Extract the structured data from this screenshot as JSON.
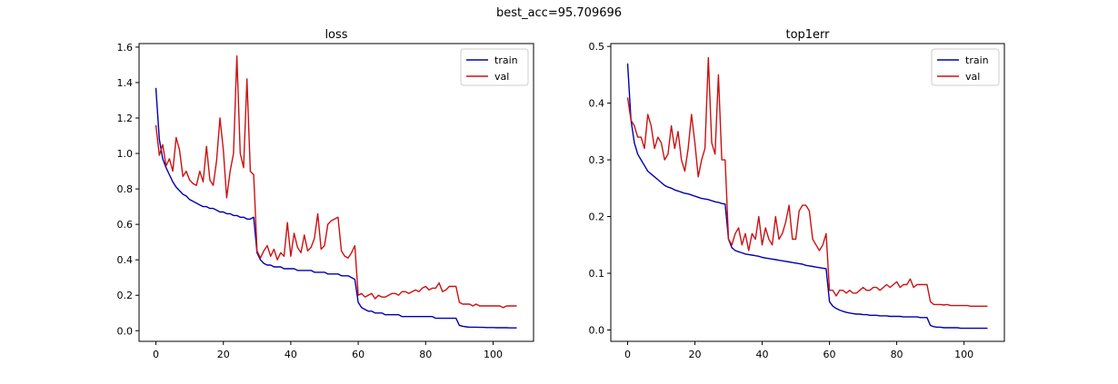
{
  "suptitle": "best_acc=95.709696",
  "colors": {
    "train": "#0000b0",
    "val": "#cc1111",
    "axis": "#000000"
  },
  "chart_data": [
    {
      "type": "line",
      "title": "loss",
      "xlabel": "",
      "ylabel": "",
      "xlim": [
        -5,
        112
      ],
      "ylim": [
        -0.06,
        1.62
      ],
      "xticks": [
        0,
        20,
        40,
        60,
        80,
        100
      ],
      "yticks": [
        0.0,
        0.2,
        0.4,
        0.6,
        0.8,
        1.0,
        1.2,
        1.4,
        1.6
      ],
      "ytick_labels": [
        "0.0",
        "0.2",
        "0.4",
        "0.6",
        "0.8",
        "1.0",
        "1.2",
        "1.4",
        "1.6"
      ],
      "xtick_labels": [
        "0",
        "20",
        "40",
        "60",
        "80",
        "100"
      ],
      "legend": "top-right",
      "series": [
        {
          "name": "train",
          "x": [
            0,
            1,
            2,
            3,
            4,
            5,
            6,
            7,
            8,
            9,
            10,
            11,
            12,
            13,
            14,
            15,
            16,
            17,
            18,
            19,
            20,
            21,
            22,
            23,
            24,
            25,
            26,
            27,
            28,
            29,
            30,
            31,
            32,
            33,
            34,
            35,
            36,
            37,
            38,
            39,
            40,
            41,
            42,
            43,
            44,
            45,
            46,
            47,
            48,
            49,
            50,
            51,
            52,
            53,
            54,
            55,
            56,
            57,
            58,
            59,
            60,
            61,
            62,
            63,
            64,
            65,
            66,
            67,
            68,
            69,
            70,
            71,
            72,
            73,
            74,
            75,
            76,
            77,
            78,
            79,
            80,
            81,
            82,
            83,
            84,
            85,
            86,
            87,
            88,
            89,
            90,
            91,
            92,
            93,
            94,
            95,
            96,
            97,
            98,
            99,
            100,
            101,
            102,
            103,
            104,
            105,
            106,
            107
          ],
          "y": [
            1.37,
            1.08,
            0.97,
            0.92,
            0.88,
            0.84,
            0.81,
            0.79,
            0.77,
            0.76,
            0.74,
            0.73,
            0.72,
            0.71,
            0.7,
            0.7,
            0.69,
            0.69,
            0.68,
            0.67,
            0.67,
            0.66,
            0.66,
            0.65,
            0.65,
            0.64,
            0.64,
            0.63,
            0.63,
            0.64,
            0.44,
            0.4,
            0.38,
            0.37,
            0.37,
            0.36,
            0.36,
            0.36,
            0.35,
            0.35,
            0.35,
            0.35,
            0.34,
            0.34,
            0.34,
            0.34,
            0.34,
            0.33,
            0.33,
            0.33,
            0.33,
            0.32,
            0.32,
            0.32,
            0.32,
            0.31,
            0.31,
            0.31,
            0.3,
            0.29,
            0.16,
            0.13,
            0.12,
            0.11,
            0.11,
            0.1,
            0.1,
            0.1,
            0.09,
            0.09,
            0.09,
            0.09,
            0.09,
            0.08,
            0.08,
            0.08,
            0.08,
            0.08,
            0.08,
            0.08,
            0.08,
            0.08,
            0.08,
            0.07,
            0.07,
            0.07,
            0.07,
            0.07,
            0.07,
            0.07,
            0.03,
            0.025,
            0.022,
            0.02,
            0.02,
            0.02,
            0.019,
            0.019,
            0.018,
            0.018,
            0.018,
            0.017,
            0.017,
            0.017,
            0.017,
            0.016,
            0.016,
            0.016
          ]
        },
        {
          "name": "val",
          "x": [
            0,
            1,
            2,
            3,
            4,
            5,
            6,
            7,
            8,
            9,
            10,
            11,
            12,
            13,
            14,
            15,
            16,
            17,
            18,
            19,
            20,
            21,
            22,
            23,
            24,
            25,
            26,
            27,
            28,
            29,
            30,
            31,
            32,
            33,
            34,
            35,
            36,
            37,
            38,
            39,
            40,
            41,
            42,
            43,
            44,
            45,
            46,
            47,
            48,
            49,
            50,
            51,
            52,
            53,
            54,
            55,
            56,
            57,
            58,
            59,
            60,
            61,
            62,
            63,
            64,
            65,
            66,
            67,
            68,
            69,
            70,
            71,
            72,
            73,
            74,
            75,
            76,
            77,
            78,
            79,
            80,
            81,
            82,
            83,
            84,
            85,
            86,
            87,
            88,
            89,
            90,
            91,
            92,
            93,
            94,
            95,
            96,
            97,
            98,
            99,
            100,
            101,
            102,
            103,
            104,
            105,
            106,
            107
          ],
          "y": [
            1.16,
            0.99,
            1.05,
            0.93,
            0.97,
            0.9,
            1.09,
            1.02,
            0.87,
            0.9,
            0.85,
            0.83,
            0.82,
            0.9,
            0.84,
            1.04,
            0.85,
            0.82,
            0.96,
            1.2,
            1.02,
            0.75,
            0.9,
            1.0,
            1.55,
            1.0,
            0.92,
            1.42,
            0.9,
            0.88,
            0.45,
            0.41,
            0.45,
            0.48,
            0.42,
            0.46,
            0.4,
            0.44,
            0.42,
            0.61,
            0.42,
            0.55,
            0.47,
            0.44,
            0.54,
            0.45,
            0.47,
            0.52,
            0.66,
            0.46,
            0.48,
            0.6,
            0.62,
            0.63,
            0.64,
            0.45,
            0.42,
            0.41,
            0.44,
            0.48,
            0.2,
            0.21,
            0.19,
            0.2,
            0.21,
            0.18,
            0.2,
            0.19,
            0.19,
            0.2,
            0.21,
            0.21,
            0.2,
            0.22,
            0.22,
            0.21,
            0.22,
            0.23,
            0.22,
            0.24,
            0.25,
            0.23,
            0.24,
            0.24,
            0.27,
            0.22,
            0.23,
            0.25,
            0.25,
            0.25,
            0.16,
            0.15,
            0.15,
            0.15,
            0.14,
            0.15,
            0.14,
            0.14,
            0.14,
            0.14,
            0.14,
            0.14,
            0.14,
            0.13,
            0.14,
            0.14,
            0.14,
            0.14
          ]
        }
      ]
    },
    {
      "type": "line",
      "title": "top1err",
      "xlabel": "",
      "ylabel": "",
      "xlim": [
        -5,
        112
      ],
      "ylim": [
        -0.02,
        0.505
      ],
      "xticks": [
        0,
        20,
        40,
        60,
        80,
        100
      ],
      "yticks": [
        0.0,
        0.1,
        0.2,
        0.3,
        0.4,
        0.5
      ],
      "ytick_labels": [
        "0.0",
        "0.1",
        "0.2",
        "0.3",
        "0.4",
        "0.5"
      ],
      "xtick_labels": [
        "0",
        "20",
        "40",
        "60",
        "80",
        "100"
      ],
      "legend": "top-right",
      "series": [
        {
          "name": "train",
          "x": [
            0,
            1,
            2,
            3,
            4,
            5,
            6,
            7,
            8,
            9,
            10,
            11,
            12,
            13,
            14,
            15,
            16,
            17,
            18,
            19,
            20,
            21,
            22,
            23,
            24,
            25,
            26,
            27,
            28,
            29,
            30,
            31,
            32,
            33,
            34,
            35,
            36,
            37,
            38,
            39,
            40,
            41,
            42,
            43,
            44,
            45,
            46,
            47,
            48,
            49,
            50,
            51,
            52,
            53,
            54,
            55,
            56,
            57,
            58,
            59,
            60,
            61,
            62,
            63,
            64,
            65,
            66,
            67,
            68,
            69,
            70,
            71,
            72,
            73,
            74,
            75,
            76,
            77,
            78,
            79,
            80,
            81,
            82,
            83,
            84,
            85,
            86,
            87,
            88,
            89,
            90,
            91,
            92,
            93,
            94,
            95,
            96,
            97,
            98,
            99,
            100,
            101,
            102,
            103,
            104,
            105,
            106,
            107
          ],
          "y": [
            0.47,
            0.37,
            0.33,
            0.31,
            0.3,
            0.29,
            0.28,
            0.275,
            0.27,
            0.265,
            0.26,
            0.255,
            0.252,
            0.25,
            0.247,
            0.245,
            0.243,
            0.241,
            0.24,
            0.238,
            0.236,
            0.234,
            0.232,
            0.231,
            0.23,
            0.228,
            0.226,
            0.225,
            0.223,
            0.222,
            0.16,
            0.145,
            0.14,
            0.138,
            0.136,
            0.134,
            0.133,
            0.132,
            0.131,
            0.13,
            0.128,
            0.127,
            0.126,
            0.125,
            0.124,
            0.123,
            0.122,
            0.121,
            0.12,
            0.119,
            0.118,
            0.117,
            0.116,
            0.114,
            0.113,
            0.112,
            0.111,
            0.11,
            0.109,
            0.108,
            0.05,
            0.042,
            0.038,
            0.035,
            0.033,
            0.031,
            0.03,
            0.029,
            0.028,
            0.028,
            0.027,
            0.027,
            0.026,
            0.026,
            0.026,
            0.025,
            0.025,
            0.025,
            0.024,
            0.024,
            0.024,
            0.024,
            0.023,
            0.023,
            0.023,
            0.023,
            0.023,
            0.022,
            0.022,
            0.022,
            0.008,
            0.006,
            0.005,
            0.005,
            0.004,
            0.004,
            0.004,
            0.004,
            0.004,
            0.003,
            0.003,
            0.003,
            0.003,
            0.003,
            0.003,
            0.003,
            0.003,
            0.003
          ]
        },
        {
          "name": "val",
          "x": [
            0,
            1,
            2,
            3,
            4,
            5,
            6,
            7,
            8,
            9,
            10,
            11,
            12,
            13,
            14,
            15,
            16,
            17,
            18,
            19,
            20,
            21,
            22,
            23,
            24,
            25,
            26,
            27,
            28,
            29,
            30,
            31,
            32,
            33,
            34,
            35,
            36,
            37,
            38,
            39,
            40,
            41,
            42,
            43,
            44,
            45,
            46,
            47,
            48,
            49,
            50,
            51,
            52,
            53,
            54,
            55,
            56,
            57,
            58,
            59,
            60,
            61,
            62,
            63,
            64,
            65,
            66,
            67,
            68,
            69,
            70,
            71,
            72,
            73,
            74,
            75,
            76,
            77,
            78,
            79,
            80,
            81,
            82,
            83,
            84,
            85,
            86,
            87,
            88,
            89,
            90,
            91,
            92,
            93,
            94,
            95,
            96,
            97,
            98,
            99,
            100,
            101,
            102,
            103,
            104,
            105,
            106,
            107
          ],
          "y": [
            0.41,
            0.37,
            0.36,
            0.34,
            0.34,
            0.32,
            0.38,
            0.36,
            0.32,
            0.34,
            0.33,
            0.3,
            0.31,
            0.36,
            0.32,
            0.35,
            0.3,
            0.28,
            0.32,
            0.38,
            0.33,
            0.27,
            0.3,
            0.32,
            0.48,
            0.33,
            0.31,
            0.45,
            0.3,
            0.3,
            0.16,
            0.15,
            0.17,
            0.18,
            0.15,
            0.17,
            0.14,
            0.17,
            0.16,
            0.2,
            0.15,
            0.18,
            0.16,
            0.15,
            0.2,
            0.16,
            0.17,
            0.19,
            0.22,
            0.16,
            0.16,
            0.21,
            0.22,
            0.22,
            0.21,
            0.16,
            0.15,
            0.14,
            0.15,
            0.17,
            0.07,
            0.07,
            0.06,
            0.07,
            0.07,
            0.065,
            0.07,
            0.065,
            0.065,
            0.07,
            0.075,
            0.07,
            0.07,
            0.075,
            0.075,
            0.07,
            0.075,
            0.08,
            0.075,
            0.08,
            0.085,
            0.075,
            0.08,
            0.08,
            0.09,
            0.075,
            0.08,
            0.08,
            0.08,
            0.08,
            0.05,
            0.045,
            0.045,
            0.045,
            0.044,
            0.045,
            0.043,
            0.043,
            0.043,
            0.043,
            0.043,
            0.043,
            0.042,
            0.042,
            0.042,
            0.042,
            0.042,
            0.042
          ]
        }
      ]
    }
  ]
}
